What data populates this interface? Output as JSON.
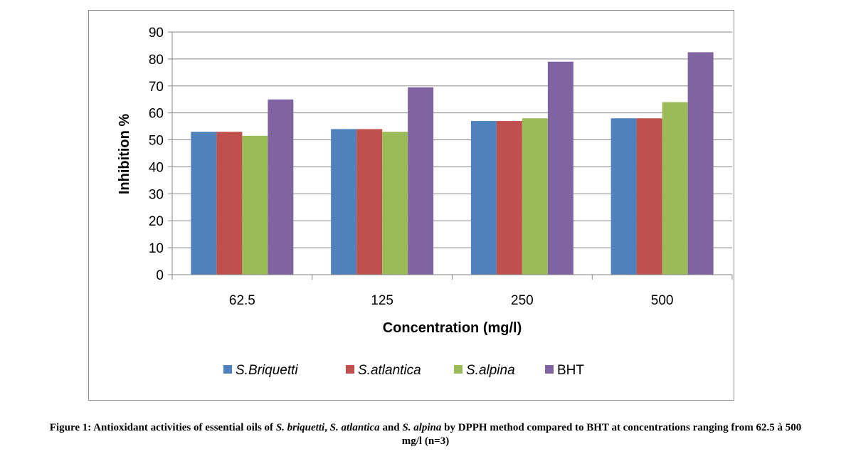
{
  "chart_data": {
    "type": "bar",
    "categories": [
      "62.5",
      "125",
      "250",
      "500"
    ],
    "series": [
      {
        "name": "S.Briquetti",
        "italic": true,
        "color": "#4f81bd",
        "values": [
          53,
          54,
          57,
          58
        ]
      },
      {
        "name": "S.atlantica",
        "italic": true,
        "color": "#c0504d",
        "values": [
          53,
          54,
          57,
          58
        ]
      },
      {
        "name": "S.alpina",
        "italic": true,
        "color": "#9bbb59",
        "values": [
          51.5,
          53,
          58,
          64
        ]
      },
      {
        "name": "BHT",
        "italic": false,
        "color": "#8064a2",
        "values": [
          65,
          69.5,
          79,
          82.5
        ]
      }
    ],
    "xlabel": "Concentration  (mg/l)",
    "ylabel": "Inhibition %",
    "ylim": [
      0,
      90
    ],
    "yticks": [
      0,
      10,
      20,
      30,
      40,
      50,
      60,
      70,
      80,
      90
    ],
    "grid": true,
    "legend_position": "bottom"
  },
  "caption": {
    "parts": [
      {
        "text": "Figure 1: Antioxidant activities of essential oils of ",
        "italic": false
      },
      {
        "text": "S. briquetti",
        "italic": true
      },
      {
        "text": ", ",
        "italic": false
      },
      {
        "text": "S. atlantica",
        "italic": true
      },
      {
        "text": " and ",
        "italic": false
      },
      {
        "text": "S. alpina",
        "italic": true
      },
      {
        "text": " by DPPH method compared to BHT at concentrations ranging from 62.5 à 500 mg/l (n=3)",
        "italic": false
      }
    ]
  }
}
